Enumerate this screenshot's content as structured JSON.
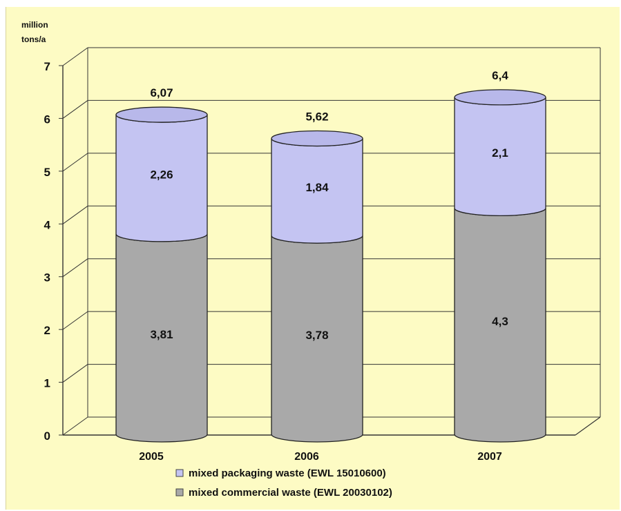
{
  "colors": {
    "background": "#FDFBC4",
    "packaging": "#C4C4F2",
    "commercial": "#A9A9A9",
    "outline": "#222222"
  },
  "chart_data": {
    "type": "bar",
    "stacked": true,
    "style": "3d-cylinder",
    "ylabel": "million tons/a",
    "ylim": [
      0,
      7
    ],
    "yticks": [
      "0",
      "1",
      "2",
      "3",
      "4",
      "5",
      "6",
      "7"
    ],
    "categories": [
      "2005",
      "2006",
      "2007"
    ],
    "series": [
      {
        "name": "mixed commercial waste  (EWL 20030102)",
        "values": [
          3.81,
          3.78,
          4.3
        ],
        "labels": [
          "3,81",
          "3,78",
          "4,3"
        ],
        "color": "#A9A9A9"
      },
      {
        "name": "mixed packaging waste (EWL 15010600)",
        "values": [
          2.26,
          1.84,
          2.1
        ],
        "labels": [
          "2,26",
          "1,84",
          "2,1"
        ],
        "color": "#C4C4F2"
      }
    ],
    "totals": [
      6.07,
      5.62,
      6.4
    ],
    "total_labels": [
      "6,07",
      "5,62",
      "6,4"
    ],
    "grid": true,
    "legend_position": "bottom",
    "legend_order": [
      "mixed packaging waste (EWL 15010600)",
      "mixed commercial waste  (EWL 20030102)"
    ]
  }
}
